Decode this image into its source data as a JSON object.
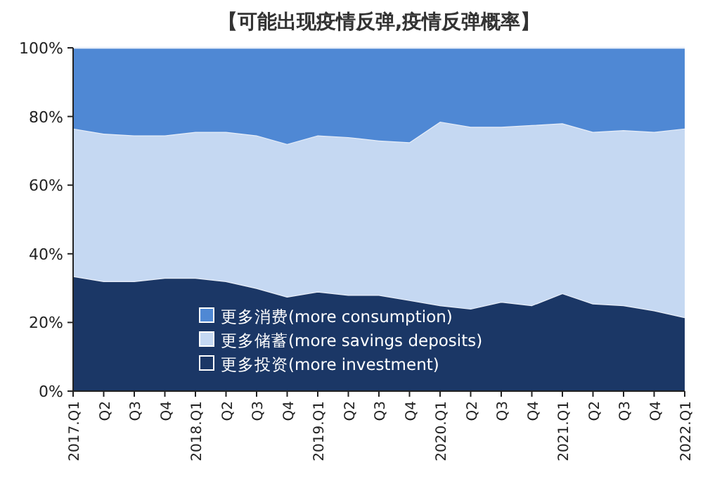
{
  "chart_data": {
    "type": "area",
    "stacked": true,
    "title": "【可能出现疫情反弹,疫情反弹概率】",
    "categories": [
      "2017.Q1",
      "Q2",
      "Q3",
      "Q4",
      "2018.Q1",
      "Q2",
      "Q3",
      "Q4",
      "2019.Q1",
      "Q2",
      "Q3",
      "Q4",
      "2020.Q1",
      "Q2",
      "Q3",
      "Q4",
      "2021.Q1",
      "Q2",
      "Q3",
      "Q4",
      "2022.Q1"
    ],
    "series": [
      {
        "name": "更多投资(more investment)",
        "color": "#1b3766",
        "values": [
          33.5,
          32,
          32,
          33,
          33,
          32,
          30,
          27.5,
          29,
          28,
          28,
          26.5,
          25,
          24,
          26,
          25,
          28.5,
          25.5,
          25,
          23.5,
          21.5
        ]
      },
      {
        "name": "更多储蓄(more savings deposits)",
        "color": "#c5d8f2",
        "values": [
          43,
          43,
          42.5,
          41.5,
          42.5,
          43.5,
          44.5,
          44.5,
          45.5,
          46,
          45,
          46,
          53.5,
          53,
          51,
          52.5,
          49.5,
          50,
          51,
          52,
          55
        ]
      },
      {
        "name": "更多消费(more consumption)",
        "color": "#4f88d4",
        "values": [
          23.5,
          25,
          25.5,
          25.5,
          24.5,
          24.5,
          25.5,
          28,
          25.5,
          26,
          27,
          27.5,
          21.5,
          23,
          23,
          22.5,
          22,
          24.5,
          24,
          24.5,
          23.5
        ]
      }
    ],
    "ylim": [
      0,
      100
    ],
    "yticks": [
      {
        "value": 0,
        "label": "0%"
      },
      {
        "value": 20,
        "label": "20%"
      },
      {
        "value": 40,
        "label": "40%"
      },
      {
        "value": 60,
        "label": "60%"
      },
      {
        "value": 80,
        "label": "80%"
      },
      {
        "value": 100,
        "label": "100%"
      }
    ],
    "legend": "bottom",
    "grid": false
  }
}
